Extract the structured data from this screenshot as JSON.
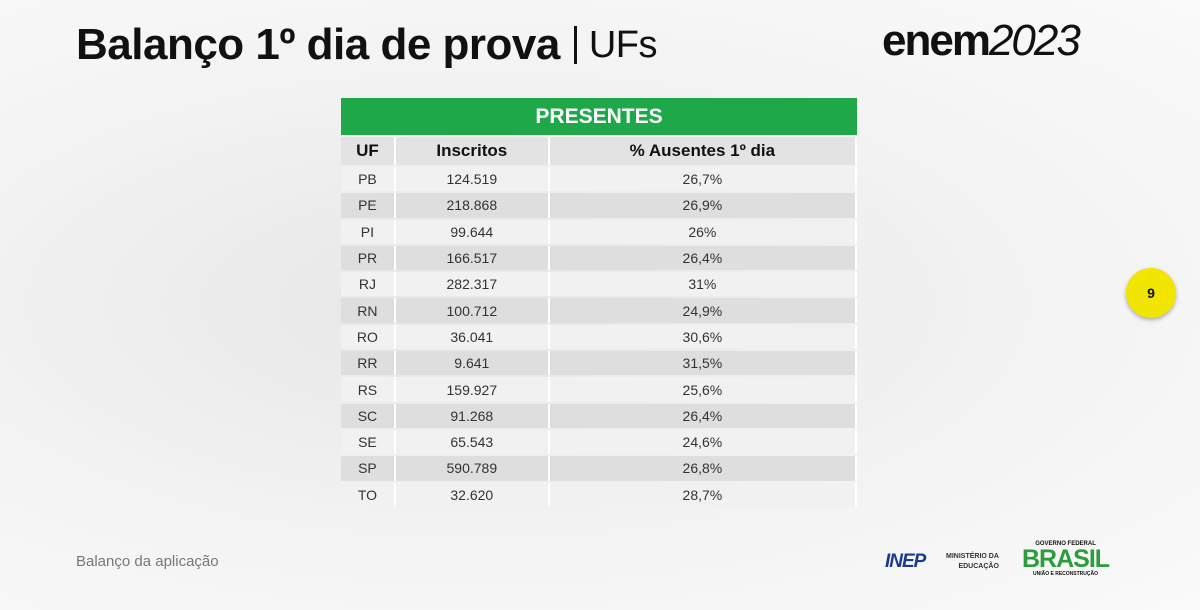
{
  "header": {
    "title": "Balanço 1º dia de prova",
    "subtitle": "UFs",
    "logo": {
      "word": "enem",
      "year": "2023"
    }
  },
  "table": {
    "title": "PRESENTES",
    "columns": [
      "UF",
      "Inscritos",
      "% Ausentes 1º dia"
    ],
    "rows": [
      [
        "PB",
        "124.519",
        "26,7%"
      ],
      [
        "PE",
        "218.868",
        "26,9%"
      ],
      [
        "PI",
        "99.644",
        "26%"
      ],
      [
        "PR",
        "166.517",
        "26,4%"
      ],
      [
        "RJ",
        "282.317",
        "31%"
      ],
      [
        "RN",
        "100.712",
        "24,9%"
      ],
      [
        "RO",
        "36.041",
        "30,6%"
      ],
      [
        "RR",
        "9.641",
        "31,5%"
      ],
      [
        "RS",
        "159.927",
        "25,6%"
      ],
      [
        "SC",
        "91.268",
        "26,4%"
      ],
      [
        "SE",
        "65.543",
        "24,6%"
      ],
      [
        "SP",
        "590.789",
        "26,8%"
      ],
      [
        "TO",
        "32.620",
        "28,7%"
      ]
    ]
  },
  "page_number": "9",
  "footer": {
    "text": "Balanço da aplicação",
    "logos": {
      "inep": "INEP",
      "ministry": [
        "MINISTÉRIO DA",
        "EDUCAÇÃO"
      ],
      "government": {
        "top": "GOVERNO FEDERAL",
        "name": "BRASIL",
        "motto": "UNIÃO E RECONSTRUÇÃO"
      }
    }
  }
}
